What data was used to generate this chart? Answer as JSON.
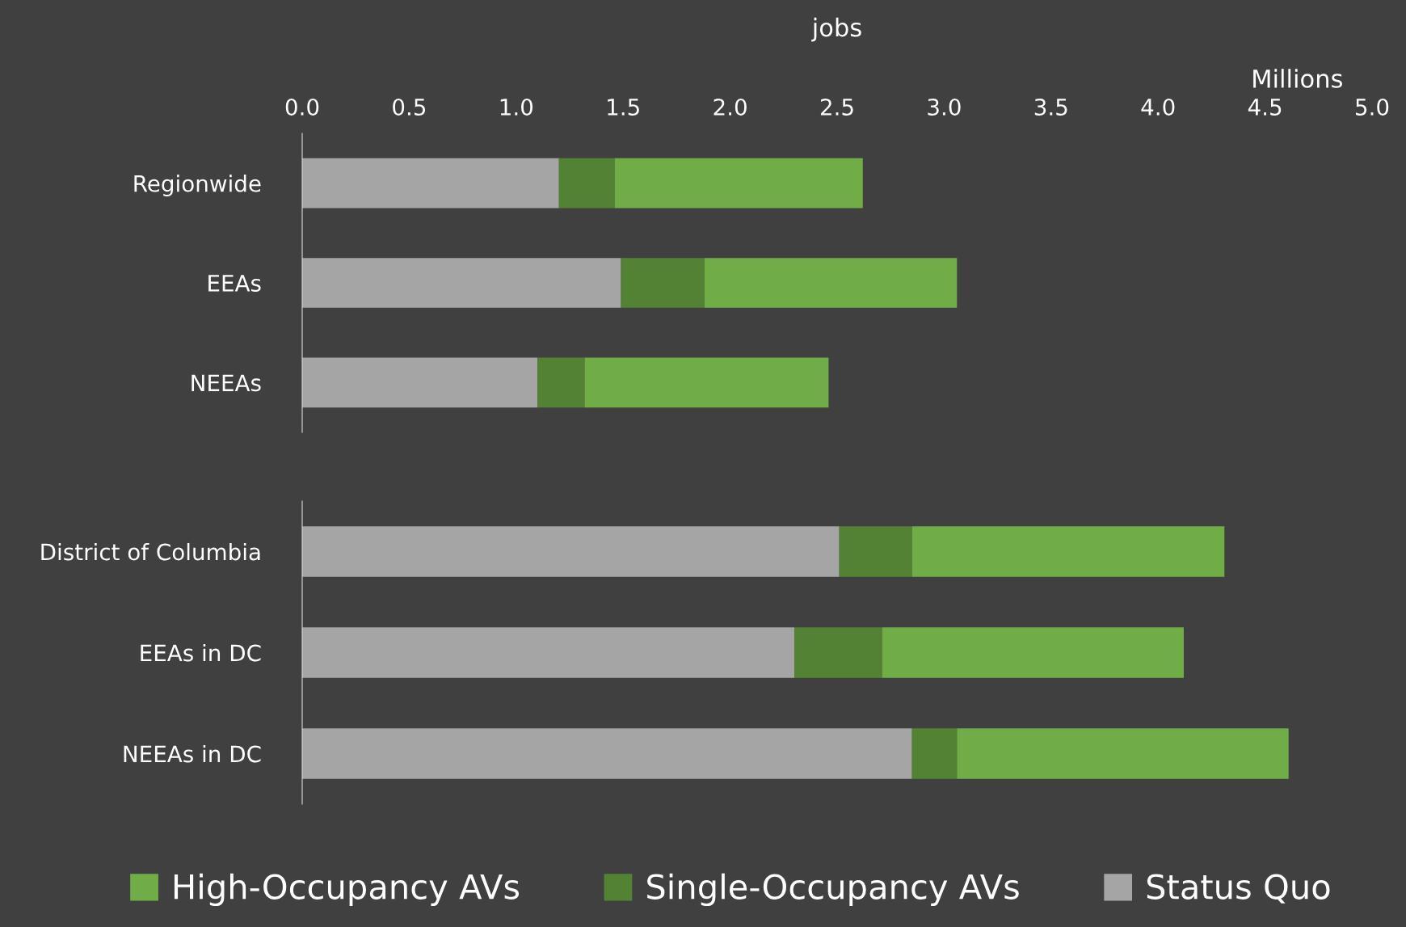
{
  "chart_data": [
    {
      "type": "bar",
      "orientation": "horizontal",
      "stacked": true,
      "xlabel": "jobs",
      "annotations": [
        "Millions"
      ],
      "categories": [
        "Regionwide",
        "EEAs",
        "NEEAs"
      ],
      "series": [
        {
          "name": "Status Quo",
          "color": "#a5a5a5",
          "values": [
            1.2,
            1.49,
            1.1
          ]
        },
        {
          "name": "Single-Occupancy AVs",
          "color": "#548235",
          "values": [
            0.26,
            0.39,
            0.22
          ]
        },
        {
          "name": "High-Occupancy AVs",
          "color": "#70ad47",
          "values": [
            1.16,
            1.18,
            1.14
          ]
        }
      ],
      "xlim": [
        0,
        5
      ],
      "xticks": [
        {
          "value": 0,
          "label": "0.0"
        },
        {
          "value": 0.5,
          "label": "0.5"
        },
        {
          "value": 1,
          "label": "1.0"
        },
        {
          "value": 1.5,
          "label": "1.5"
        },
        {
          "value": 2,
          "label": "2.0"
        },
        {
          "value": 2.5,
          "label": "2.5"
        },
        {
          "value": 3,
          "label": "3.0"
        },
        {
          "value": 3.5,
          "label": "3.5"
        },
        {
          "value": 4,
          "label": "4.0"
        },
        {
          "value": 4.5,
          "label": "4.5"
        },
        {
          "value": 5,
          "label": "5.0"
        }
      ],
      "grid": false,
      "legend": "bottom"
    },
    {
      "type": "bar",
      "orientation": "horizontal",
      "stacked": true,
      "categories": [
        "District of Columbia",
        "EEAs in DC",
        "NEEAs in DC"
      ],
      "series": [
        {
          "color": "#a5a5a5",
          "values": [
            2.51,
            2.3,
            2.85
          ]
        },
        {
          "color": "#548235",
          "values": [
            0.34,
            0.41,
            0.21
          ]
        },
        {
          "color": "#70ad47",
          "values": [
            1.46,
            1.41,
            1.55
          ]
        }
      ],
      "xlim": [
        0,
        5
      ],
      "tick_labels": "y",
      "grid": false
    }
  ]
}
